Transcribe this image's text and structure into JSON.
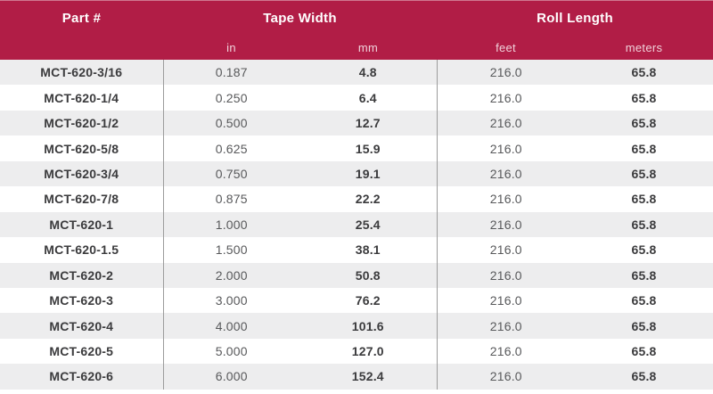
{
  "colors": {
    "header_bg": "#b11d46",
    "header_text": "#ffffff",
    "subheader_text": "rgba(255,255,255,0.8)",
    "row_alt_bg": "#ededee",
    "row_bg": "#ffffff",
    "text_strong": "#3b3b3d",
    "text_regular": "#58595b",
    "divider": "#9c9c9c"
  },
  "table": {
    "column_groups": {
      "part_number": "Part #",
      "tape_width": "Tape Width",
      "roll_length": "Roll Length"
    },
    "subheaders": {
      "in": "in",
      "mm": "mm",
      "feet": "feet",
      "meters": "meters"
    },
    "rows": [
      {
        "part": "MCT-620-3/16",
        "in": "0.187",
        "mm": "4.8",
        "feet": "216.0",
        "meters": "65.8"
      },
      {
        "part": "MCT-620-1/4",
        "in": "0.250",
        "mm": "6.4",
        "feet": "216.0",
        "meters": "65.8"
      },
      {
        "part": "MCT-620-1/2",
        "in": "0.500",
        "mm": "12.7",
        "feet": "216.0",
        "meters": "65.8"
      },
      {
        "part": "MCT-620-5/8",
        "in": "0.625",
        "mm": "15.9",
        "feet": "216.0",
        "meters": "65.8"
      },
      {
        "part": "MCT-620-3/4",
        "in": "0.750",
        "mm": "19.1",
        "feet": "216.0",
        "meters": "65.8"
      },
      {
        "part": "MCT-620-7/8",
        "in": "0.875",
        "mm": "22.2",
        "feet": "216.0",
        "meters": "65.8"
      },
      {
        "part": "MCT-620-1",
        "in": "1.000",
        "mm": "25.4",
        "feet": "216.0",
        "meters": "65.8"
      },
      {
        "part": "MCT-620-1.5",
        "in": "1.500",
        "mm": "38.1",
        "feet": "216.0",
        "meters": "65.8"
      },
      {
        "part": "MCT-620-2",
        "in": "2.000",
        "mm": "50.8",
        "feet": "216.0",
        "meters": "65.8"
      },
      {
        "part": "MCT-620-3",
        "in": "3.000",
        "mm": "76.2",
        "feet": "216.0",
        "meters": "65.8"
      },
      {
        "part": "MCT-620-4",
        "in": "4.000",
        "mm": "101.6",
        "feet": "216.0",
        "meters": "65.8"
      },
      {
        "part": "MCT-620-5",
        "in": "5.000",
        "mm": "127.0",
        "feet": "216.0",
        "meters": "65.8"
      },
      {
        "part": "MCT-620-6",
        "in": "6.000",
        "mm": "152.4",
        "feet": "216.0",
        "meters": "65.8"
      }
    ]
  }
}
